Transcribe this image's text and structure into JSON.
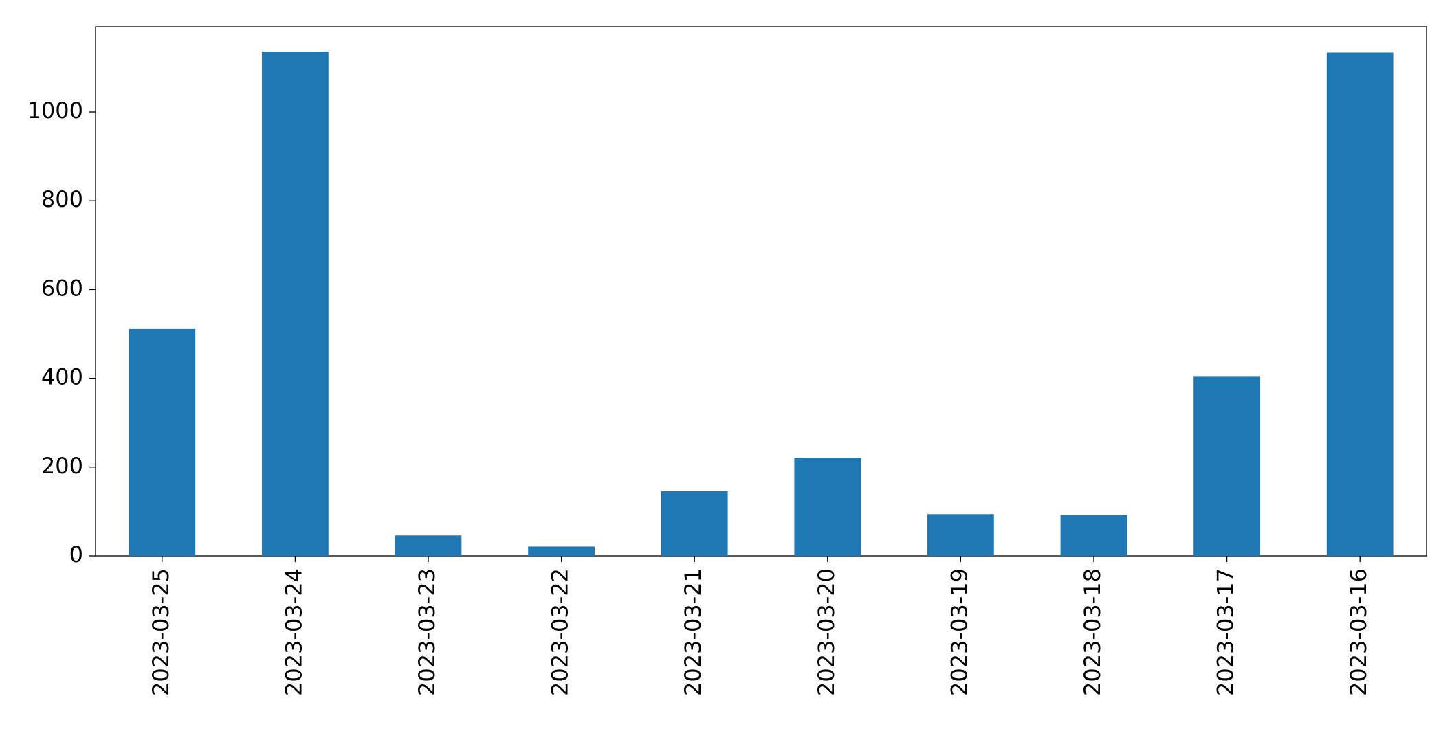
{
  "chart_data": {
    "type": "bar",
    "categories": [
      "2023-03-25",
      "2023-03-24",
      "2023-03-23",
      "2023-03-22",
      "2023-03-21",
      "2023-03-20",
      "2023-03-19",
      "2023-03-18",
      "2023-03-17",
      "2023-03-16"
    ],
    "values": [
      511,
      1136,
      46,
      21,
      146,
      221,
      94,
      92,
      405,
      1134
    ],
    "color": "#1f77b4",
    "ylim": [
      0,
      1192
    ],
    "yticks": [
      0,
      200,
      400,
      600,
      800,
      1000
    ],
    "grid": false
  }
}
